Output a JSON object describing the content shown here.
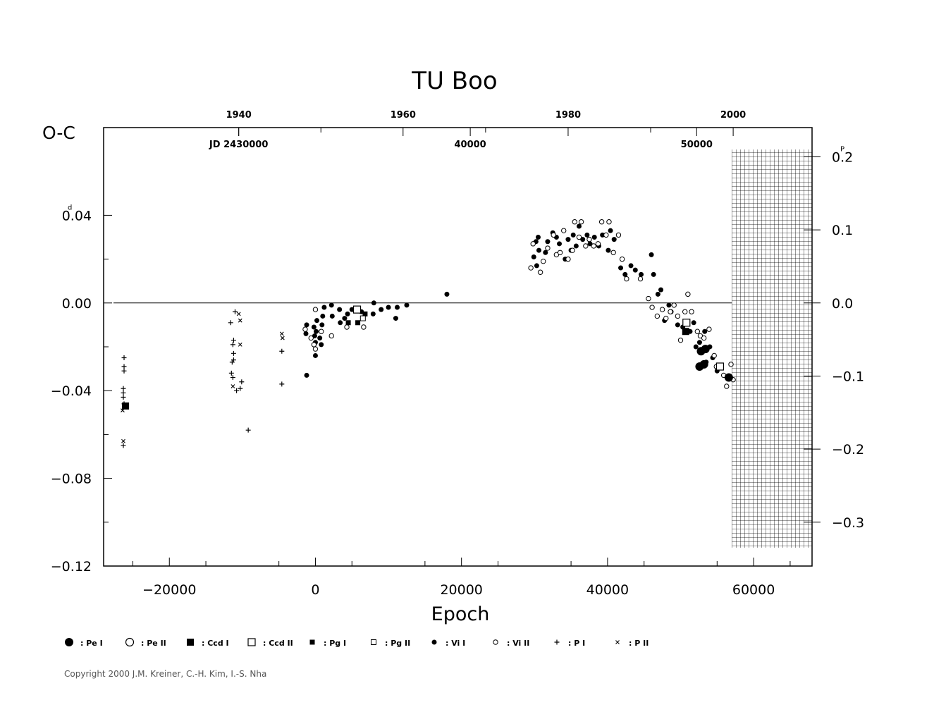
{
  "chart_data": {
    "type": "scatter",
    "title": "TU Boo",
    "xlabel": "Epoch",
    "ylabel": "O-C",
    "ylabel_unit": "d",
    "y2_unit": "P",
    "xlim": [
      -29000,
      68000
    ],
    "ylim": [
      -0.12,
      0.08
    ],
    "y2lim": [
      -0.36,
      0.24
    ],
    "x_ticks": [
      -20000,
      0,
      20000,
      40000,
      60000
    ],
    "x_tick_labels": [
      "−20000",
      "0",
      "20000",
      "40000",
      "60000"
    ],
    "y_ticks": [
      0.04,
      0.0,
      -0.04,
      -0.08,
      -0.12
    ],
    "y_tick_labels": [
      "0.04",
      "0.00",
      "−0.04",
      "−0.08",
      "−0.12"
    ],
    "y2_ticks": [
      0.2,
      0.1,
      0.0,
      -0.1,
      -0.2,
      -0.3
    ],
    "y2_tick_labels": [
      "0.2",
      "0.1",
      "0.0",
      "−0.1",
      "−0.2",
      "−0.3"
    ],
    "top_year_ticks": [
      {
        "epoch": -10500,
        "label": "1940"
      },
      {
        "epoch": 12000,
        "label": "1960"
      },
      {
        "epoch": 34600,
        "label": "1980"
      },
      {
        "epoch": 57200,
        "label": "2000"
      }
    ],
    "jd_labels": [
      {
        "epoch": -10500,
        "label": "JD 2430000"
      },
      {
        "epoch": 21200,
        "label": "40000"
      },
      {
        "epoch": 52200,
        "label": "50000"
      }
    ],
    "zero_line": 0.0,
    "hatched_region_x": [
      57000,
      68000
    ],
    "hatched_region_y2": [
      -0.335,
      0.21
    ],
    "legend": [
      {
        "label": "Pe I",
        "marker": "large-filled-circle"
      },
      {
        "label": "Pe II",
        "marker": "large-open-circle"
      },
      {
        "label": "Ccd I",
        "marker": "filled-square"
      },
      {
        "label": "Ccd II",
        "marker": "open-square"
      },
      {
        "label": "Pg I",
        "marker": "small-filled-square"
      },
      {
        "label": "Pg II",
        "marker": "small-open-square"
      },
      {
        "label": "Vi I",
        "marker": "small-filled-circle"
      },
      {
        "label": "Vi II",
        "marker": "small-open-circle"
      },
      {
        "label": "P I",
        "marker": "plus"
      },
      {
        "label": "P II",
        "marker": "cross"
      }
    ],
    "series": [
      {
        "name": "Pe I",
        "marker": "large-filled-circle",
        "points": [
          [
            52800,
            -0.022
          ],
          [
            53200,
            -0.028
          ],
          [
            52600,
            -0.029
          ],
          [
            53400,
            -0.021
          ],
          [
            56600,
            -0.034
          ]
        ]
      },
      {
        "name": "Pe II",
        "marker": "large-open-circle",
        "points": []
      },
      {
        "name": "Ccd I",
        "marker": "filled-square",
        "points": [
          [
            50700,
            -0.013
          ],
          [
            -26000,
            -0.047
          ]
        ]
      },
      {
        "name": "Ccd II",
        "marker": "open-square",
        "points": [
          [
            50800,
            -0.009
          ],
          [
            55400,
            -0.029
          ],
          [
            5700,
            -0.003
          ]
        ]
      },
      {
        "name": "Pg I",
        "marker": "small-filled-square",
        "points": [
          [
            4500,
            -0.009
          ],
          [
            5800,
            -0.009
          ],
          [
            6800,
            -0.005
          ]
        ]
      },
      {
        "name": "Pg II",
        "marker": "small-open-square",
        "points": [
          [
            6500,
            -0.007
          ]
        ]
      },
      {
        "name": "Vi I",
        "marker": "small-filled-circle",
        "points": [
          [
            -1200,
            -0.033
          ],
          [
            -1300,
            -0.014
          ],
          [
            -1200,
            -0.01
          ],
          [
            -200,
            -0.011
          ],
          [
            -100,
            -0.015
          ],
          [
            0,
            -0.018
          ],
          [
            0,
            -0.024
          ],
          [
            100,
            -0.013
          ],
          [
            200,
            -0.008
          ],
          [
            600,
            -0.016
          ],
          [
            800,
            -0.019
          ],
          [
            900,
            -0.01
          ],
          [
            1000,
            -0.006
          ],
          [
            1200,
            -0.002
          ],
          [
            2200,
            -0.001
          ],
          [
            2300,
            -0.006
          ],
          [
            3300,
            -0.003
          ],
          [
            3400,
            -0.009
          ],
          [
            4000,
            -0.007
          ],
          [
            4400,
            -0.005
          ],
          [
            5000,
            -0.003
          ],
          [
            6300,
            -0.004
          ],
          [
            7900,
            -0.005
          ],
          [
            8000,
            0.0
          ],
          [
            9000,
            -0.003
          ],
          [
            10000,
            -0.002
          ],
          [
            11000,
            -0.007
          ],
          [
            11200,
            -0.002
          ],
          [
            12500,
            -0.001
          ],
          [
            18000,
            0.004
          ],
          [
            29900,
            0.021
          ],
          [
            30200,
            0.028
          ],
          [
            30300,
            0.017
          ],
          [
            30500,
            0.03
          ],
          [
            30600,
            0.024
          ],
          [
            31500,
            0.023
          ],
          [
            31800,
            0.028
          ],
          [
            32500,
            0.032
          ],
          [
            33000,
            0.03
          ],
          [
            33400,
            0.027
          ],
          [
            34200,
            0.02
          ],
          [
            34600,
            0.029
          ],
          [
            35000,
            0.024
          ],
          [
            35300,
            0.031
          ],
          [
            35700,
            0.026
          ],
          [
            36100,
            0.035
          ],
          [
            36600,
            0.029
          ],
          [
            37200,
            0.031
          ],
          [
            37600,
            0.027
          ],
          [
            38200,
            0.03
          ],
          [
            38800,
            0.026
          ],
          [
            39300,
            0.031
          ],
          [
            40100,
            0.024
          ],
          [
            40400,
            0.033
          ],
          [
            40900,
            0.029
          ],
          [
            41800,
            0.016
          ],
          [
            42400,
            0.013
          ],
          [
            43200,
            0.017
          ],
          [
            43800,
            0.015
          ],
          [
            44600,
            0.013
          ],
          [
            46000,
            0.022
          ],
          [
            46300,
            0.013
          ],
          [
            46900,
            0.004
          ],
          [
            47300,
            0.006
          ],
          [
            47800,
            -0.008
          ],
          [
            48400,
            -0.001
          ],
          [
            48700,
            -0.004
          ],
          [
            49600,
            -0.01
          ],
          [
            50300,
            -0.011
          ],
          [
            51300,
            -0.013
          ],
          [
            51800,
            -0.009
          ],
          [
            52100,
            -0.02
          ],
          [
            52600,
            -0.018
          ],
          [
            53300,
            -0.013
          ],
          [
            53500,
            -0.027
          ],
          [
            54000,
            -0.02
          ],
          [
            54400,
            -0.025
          ],
          [
            55000,
            -0.031
          ]
        ]
      },
      {
        "name": "Vi II",
        "marker": "small-open-circle",
        "points": [
          [
            -1400,
            -0.012
          ],
          [
            -600,
            -0.016
          ],
          [
            -200,
            -0.019
          ],
          [
            0,
            -0.021
          ],
          [
            0,
            -0.003
          ],
          [
            800,
            -0.013
          ],
          [
            2200,
            -0.015
          ],
          [
            4300,
            -0.011
          ],
          [
            6600,
            -0.011
          ],
          [
            29500,
            0.016
          ],
          [
            29800,
            0.027
          ],
          [
            30800,
            0.014
          ],
          [
            31200,
            0.019
          ],
          [
            31800,
            0.025
          ],
          [
            32600,
            0.031
          ],
          [
            33000,
            0.022
          ],
          [
            33500,
            0.023
          ],
          [
            34000,
            0.033
          ],
          [
            34600,
            0.02
          ],
          [
            35200,
            0.024
          ],
          [
            35500,
            0.037
          ],
          [
            36100,
            0.03
          ],
          [
            36400,
            0.037
          ],
          [
            37000,
            0.026
          ],
          [
            37500,
            0.029
          ],
          [
            38100,
            0.026
          ],
          [
            38700,
            0.027
          ],
          [
            39200,
            0.037
          ],
          [
            39800,
            0.031
          ],
          [
            40200,
            0.037
          ],
          [
            40800,
            0.023
          ],
          [
            41500,
            0.031
          ],
          [
            42000,
            0.02
          ],
          [
            42600,
            0.011
          ],
          [
            44500,
            0.011
          ],
          [
            45600,
            0.002
          ],
          [
            46100,
            -0.002
          ],
          [
            46800,
            -0.006
          ],
          [
            47500,
            -0.003
          ],
          [
            48000,
            -0.007
          ],
          [
            48600,
            -0.004
          ],
          [
            49100,
            -0.001
          ],
          [
            49600,
            -0.006
          ],
          [
            50000,
            -0.017
          ],
          [
            50600,
            -0.004
          ],
          [
            51000,
            0.004
          ],
          [
            51500,
            -0.004
          ],
          [
            52300,
            -0.013
          ],
          [
            52700,
            -0.015
          ],
          [
            53200,
            -0.016
          ],
          [
            53900,
            -0.012
          ],
          [
            54600,
            -0.024
          ],
          [
            54900,
            -0.029
          ],
          [
            55500,
            -0.029
          ],
          [
            55900,
            -0.033
          ],
          [
            56300,
            -0.038
          ],
          [
            56900,
            -0.028
          ],
          [
            57200,
            -0.035
          ]
        ]
      },
      {
        "name": "P I",
        "marker": "plus",
        "points": [
          [
            -26200,
            -0.025
          ],
          [
            -26200,
            -0.029
          ],
          [
            -26200,
            -0.031
          ],
          [
            -26300,
            -0.039
          ],
          [
            -26300,
            -0.041
          ],
          [
            -26300,
            -0.043
          ],
          [
            -26200,
            -0.046
          ],
          [
            -26300,
            -0.065
          ],
          [
            -11200,
            -0.017
          ],
          [
            -11300,
            -0.019
          ],
          [
            -11200,
            -0.023
          ],
          [
            -11200,
            -0.026
          ],
          [
            -11400,
            -0.027
          ],
          [
            -11500,
            -0.032
          ],
          [
            -11300,
            -0.034
          ],
          [
            -11600,
            -0.009
          ],
          [
            -11000,
            -0.004
          ],
          [
            -10800,
            -0.04
          ],
          [
            -10300,
            -0.039
          ],
          [
            -10100,
            -0.036
          ],
          [
            -9200,
            -0.058
          ],
          [
            -4600,
            -0.022
          ],
          [
            -4600,
            -0.037
          ]
        ]
      },
      {
        "name": "P II",
        "marker": "cross",
        "points": [
          [
            -26400,
            -0.049
          ],
          [
            -26300,
            -0.063
          ],
          [
            -11300,
            -0.038
          ],
          [
            -10500,
            -0.005
          ],
          [
            -10300,
            -0.008
          ],
          [
            -10300,
            -0.019
          ],
          [
            -4600,
            -0.014
          ],
          [
            -4500,
            -0.016
          ]
        ]
      }
    ]
  },
  "copyright": "Copyright 2000 J.M. Kreiner, C.-H. Kim, I.-S. Nha"
}
